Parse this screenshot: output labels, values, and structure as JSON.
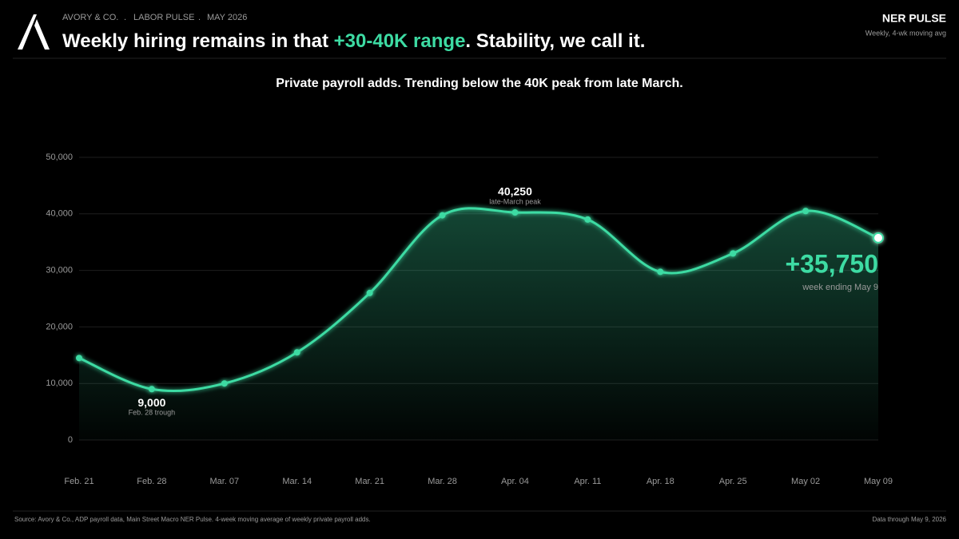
{
  "header": {
    "breadcrumb": [
      "AVORY & CO.",
      "LABOR PULSE",
      "MAY 2026"
    ],
    "headline": [
      "Weekly hiring remains in that ",
      "+30-40K range",
      ". Stability, we call it."
    ],
    "badge": "NER PULSE",
    "badge_subtitle": "Weekly, 4-wk moving avg"
  },
  "chart_data": {
    "type": "line",
    "title": "Private payroll adds. Trending below the 40K peak from late March.",
    "categories": [
      "Feb. 21",
      "Feb. 28",
      "Mar. 07",
      "Mar. 14",
      "Mar. 21",
      "Mar. 28",
      "Apr. 04",
      "Apr. 11",
      "Apr. 18",
      "Apr. 25",
      "May 02",
      "May 09"
    ],
    "values": [
      14500,
      9000,
      10000,
      15500,
      26000,
      39750,
      40250,
      39000,
      29750,
      33000,
      40500,
      35750
    ],
    "value_labels": [
      null,
      "9,000",
      null,
      null,
      null,
      null,
      "40,250",
      null,
      null,
      null,
      null,
      "+35,750"
    ],
    "value_notes": [
      null,
      "Feb. 28 trough",
      null,
      null,
      null,
      null,
      "late-March peak",
      null,
      null,
      null,
      null,
      "week ending May 9"
    ],
    "color": "#3ddba3",
    "ylim": [
      0,
      50000
    ],
    "yticks": [
      0,
      {
        "value": 10000,
        "label": "10,000"
      },
      {
        "value": 20000,
        "label": "20,000"
      },
      {
        "value": 30000,
        "label": "30,000"
      },
      {
        "value": 40000,
        "label": "40,000"
      },
      {
        "value": 50000,
        "label": "50,000"
      }
    ],
    "grid": true
  },
  "footer": {
    "source": "Source: Avory & Co., ADP payroll data, Main Street Macro NER Pulse. 4-week moving average of weekly private payroll adds.",
    "as_of": "Data through May 9, 2026"
  }
}
